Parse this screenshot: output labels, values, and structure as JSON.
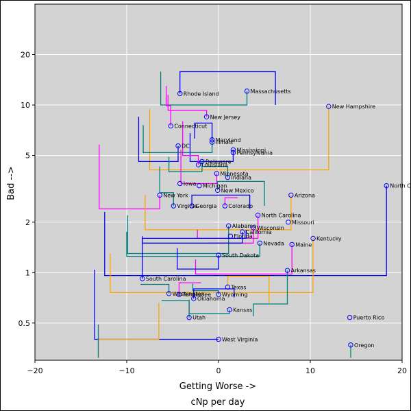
{
  "chart_data": {
    "type": "scatter",
    "title": "",
    "xlabel": "Getting Worse ->",
    "xlabel2": "cNp per day",
    "ylabel": "Bad -->",
    "xscale": "linear",
    "yscale": "log",
    "xlim": [
      -20,
      20
    ],
    "ylim": [
      0.3,
      40
    ],
    "xticks": [
      "−20",
      "−10",
      "0",
      "10",
      "20"
    ],
    "xtick_values": [
      -20,
      -10,
      0,
      10,
      20
    ],
    "yticks": [
      "0.5",
      "1",
      "2",
      "5",
      "10",
      "20"
    ],
    "ytick_values": [
      0.5,
      1,
      2,
      5,
      10,
      20
    ],
    "grid": true,
    "background": "#d3d3d3",
    "marker_color": "#0000ff",
    "points": [
      {
        "name": "Rhode Island",
        "x": -4.2,
        "y": 11.7
      },
      {
        "name": "Massachusetts",
        "x": 3.1,
        "y": 12.1
      },
      {
        "name": "New Hampshire",
        "x": 12.0,
        "y": 9.8
      },
      {
        "name": "New Jersey",
        "x": -1.3,
        "y": 8.5
      },
      {
        "name": "Connecticut",
        "x": -5.2,
        "y": 7.5
      },
      {
        "name": "Maryland",
        "x": -0.7,
        "y": 6.2
      },
      {
        "name": "Illinois",
        "x": -0.7,
        "y": 6.0
      },
      {
        "name": "DC",
        "x": -4.4,
        "y": 5.7
      },
      {
        "name": "Mississippi",
        "x": 1.6,
        "y": 5.4
      },
      {
        "name": "Pennsylvania",
        "x": 1.6,
        "y": 5.2
      },
      {
        "name": "Delaware",
        "x": -1.8,
        "y": 4.6
      },
      {
        "name": "Louisiana",
        "x": -2.2,
        "y": 4.4
      },
      {
        "name": "Minnesota",
        "x": -0.2,
        "y": 3.9
      },
      {
        "name": "Indiana",
        "x": 1.0,
        "y": 3.7
      },
      {
        "name": "Iowa",
        "x": -4.2,
        "y": 3.4
      },
      {
        "name": "Michigan",
        "x": -2.1,
        "y": 3.3
      },
      {
        "name": "New Mexico",
        "x": -0.1,
        "y": 3.1
      },
      {
        "name": "North Carolina",
        "x": 18.3,
        "y": 3.3
      },
      {
        "name": "New York",
        "x": -6.4,
        "y": 2.9
      },
      {
        "name": "Arizona",
        "x": 7.9,
        "y": 2.9
      },
      {
        "name": "Virginia",
        "x": -4.9,
        "y": 2.5
      },
      {
        "name": "Georgia",
        "x": -2.9,
        "y": 2.5
      },
      {
        "name": "Colorado",
        "x": 0.7,
        "y": 2.5
      },
      {
        "name": "North Carolina",
        "x": 4.3,
        "y": 2.2
      },
      {
        "name": "Missouri",
        "x": 7.6,
        "y": 2.0
      },
      {
        "name": "Alabama",
        "x": 1.1,
        "y": 1.9
      },
      {
        "name": "Wisconsin",
        "x": 3.8,
        "y": 1.85
      },
      {
        "name": "California",
        "x": 2.6,
        "y": 1.75
      },
      {
        "name": "Florida",
        "x": 1.3,
        "y": 1.65
      },
      {
        "name": "Kentucky",
        "x": 10.3,
        "y": 1.6
      },
      {
        "name": "Nevada",
        "x": 4.5,
        "y": 1.5
      },
      {
        "name": "Maine",
        "x": 8.0,
        "y": 1.47
      },
      {
        "name": "South Dakota",
        "x": 0.0,
        "y": 1.27
      },
      {
        "name": "Arkansas",
        "x": 7.5,
        "y": 1.03
      },
      {
        "name": "South Carolina",
        "x": -8.3,
        "y": 0.92
      },
      {
        "name": "Texas",
        "x": 1.0,
        "y": 0.82
      },
      {
        "name": "Washington",
        "x": -5.4,
        "y": 0.75
      },
      {
        "name": "Tennessee",
        "x": -4.3,
        "y": 0.74
      },
      {
        "name": "Wyoming",
        "x": 0.0,
        "y": 0.74
      },
      {
        "name": "Oklahoma",
        "x": -2.7,
        "y": 0.7
      },
      {
        "name": "Kansas",
        "x": 1.2,
        "y": 0.6
      },
      {
        "name": "Utah",
        "x": -3.2,
        "y": 0.54
      },
      {
        "name": "Puerto Rico",
        "x": 14.3,
        "y": 0.54
      },
      {
        "name": "West Virginia",
        "x": 0.0,
        "y": 0.4
      },
      {
        "name": "Oregon",
        "x": 14.4,
        "y": 0.37
      }
    ],
    "tracks": [
      {
        "color": "#0000ff",
        "path": [
          [
            -4.2,
            11.7
          ],
          [
            -4.2,
            15.8
          ],
          [
            6.2,
            15.8
          ],
          [
            6.2,
            10.0
          ]
        ]
      },
      {
        "color": "#008080",
        "path": [
          [
            3.1,
            12.1
          ],
          [
            3.1,
            10.0
          ],
          [
            -6.3,
            10.0
          ],
          [
            -6.3,
            15.8
          ]
        ]
      },
      {
        "color": "#ffa500",
        "path": [
          [
            12.0,
            9.8
          ],
          [
            12.0,
            4.1
          ],
          [
            -7.5,
            4.1
          ],
          [
            -7.5,
            9.5
          ]
        ]
      },
      {
        "color": "#ff00ff",
        "path": [
          [
            -1.3,
            8.5
          ],
          [
            -1.3,
            9.3
          ],
          [
            -5.5,
            9.3
          ],
          [
            -5.5,
            11.5
          ]
        ]
      },
      {
        "color": "#ff00ff",
        "path": [
          [
            -5.2,
            7.5
          ],
          [
            -5.2,
            9.9
          ],
          [
            -5.7,
            9.9
          ],
          [
            -5.7,
            13.0
          ]
        ]
      },
      {
        "color": "#0000ff",
        "path": [
          [
            -4.4,
            5.7
          ],
          [
            -4.4,
            4.6
          ],
          [
            -8.7,
            4.6
          ],
          [
            -8.7,
            8.5
          ]
        ]
      },
      {
        "color": "#008080",
        "path": [
          [
            -0.7,
            6.0
          ],
          [
            -0.7,
            5.2
          ],
          [
            -8.2,
            5.2
          ],
          [
            -8.2,
            7.6
          ]
        ]
      },
      {
        "color": "#0000ff",
        "path": [
          [
            -0.7,
            6.2
          ],
          [
            -0.7,
            7.8
          ],
          [
            -2.6,
            7.8
          ],
          [
            -2.6,
            6.3
          ]
        ]
      },
      {
        "color": "#0000ff",
        "path": [
          [
            1.6,
            5.4
          ],
          [
            1.6,
            4.6
          ],
          [
            -3.1,
            4.6
          ],
          [
            -3.1,
            6.8
          ]
        ]
      },
      {
        "color": "#ff00ff",
        "path": [
          [
            -2.2,
            4.4
          ],
          [
            -2.2,
            5.0
          ],
          [
            -3.9,
            5.0
          ],
          [
            -3.9,
            8.0
          ]
        ]
      },
      {
        "color": "#008080",
        "path": [
          [
            -1.8,
            4.6
          ],
          [
            -1.8,
            4.0
          ],
          [
            -5.4,
            4.0
          ],
          [
            -5.4,
            4.9
          ]
        ]
      },
      {
        "color": "#008080",
        "path": [
          [
            1.0,
            3.7
          ],
          [
            1.0,
            4.3
          ],
          [
            -1.6,
            4.3
          ]
        ]
      },
      {
        "color": "#ff00ff",
        "path": [
          [
            -0.2,
            3.9
          ],
          [
            -0.2,
            3.4
          ],
          [
            -4.1,
            3.4
          ],
          [
            -4.1,
            5.4
          ]
        ]
      },
      {
        "color": "#008080",
        "path": [
          [
            -0.1,
            3.1
          ],
          [
            -0.1,
            3.5
          ],
          [
            5.0,
            3.5
          ],
          [
            5.0,
            2.5
          ]
        ]
      },
      {
        "color": "#0000ff",
        "path": [
          [
            18.3,
            3.3
          ],
          [
            18.3,
            0.96
          ],
          [
            -12.4,
            0.96
          ],
          [
            -12.4,
            2.3
          ]
        ]
      },
      {
        "color": "#ff00ff",
        "path": [
          [
            -6.4,
            2.9
          ],
          [
            -6.4,
            2.4
          ],
          [
            -13.0,
            2.4
          ],
          [
            -13.0,
            5.8
          ]
        ]
      },
      {
        "color": "#ffa500",
        "path": [
          [
            7.9,
            2.9
          ],
          [
            7.9,
            1.8
          ],
          [
            -8.0,
            1.8
          ],
          [
            -8.0,
            2.9
          ]
        ]
      },
      {
        "color": "#0000ff",
        "path": [
          [
            -2.9,
            2.5
          ],
          [
            -2.9,
            2.9
          ],
          [
            3.4,
            2.9
          ],
          [
            3.4,
            2.4
          ]
        ]
      },
      {
        "color": "#ff00ff",
        "path": [
          [
            0.7,
            2.5
          ],
          [
            0.7,
            2.8
          ],
          [
            2.1,
            2.8
          ]
        ]
      },
      {
        "color": "#008080",
        "path": [
          [
            -4.9,
            2.5
          ],
          [
            -4.9,
            3.0
          ],
          [
            -6.4,
            3.0
          ],
          [
            -6.4,
            4.3
          ]
        ]
      },
      {
        "color": "#ff00ff",
        "path": [
          [
            4.3,
            2.2
          ],
          [
            4.3,
            1.6
          ],
          [
            -2.3,
            1.6
          ],
          [
            -2.3,
            1.8
          ]
        ]
      },
      {
        "color": "#008080",
        "path": [
          [
            1.1,
            1.9
          ],
          [
            1.1,
            1.3
          ],
          [
            -9.9,
            1.3
          ],
          [
            -9.9,
            2.2
          ]
        ]
      },
      {
        "color": "#ff00ff",
        "path": [
          [
            3.8,
            1.85
          ],
          [
            3.8,
            1.5
          ],
          [
            -1.1,
            1.5
          ]
        ]
      },
      {
        "color": "#0000ff",
        "path": [
          [
            2.6,
            1.75
          ],
          [
            2.6,
            1.5
          ],
          [
            -8.3,
            1.5
          ],
          [
            -8.3,
            1.65
          ]
        ]
      },
      {
        "color": "#008080",
        "path": [
          [
            4.5,
            1.5
          ],
          [
            4.5,
            1.25
          ],
          [
            -10.0,
            1.25
          ],
          [
            -10.0,
            1.75
          ]
        ]
      },
      {
        "color": "#ffa500",
        "path": [
          [
            10.3,
            1.6
          ],
          [
            10.3,
            0.76
          ],
          [
            -11.8,
            0.76
          ],
          [
            -11.8,
            1.3
          ]
        ]
      },
      {
        "color": "#ff00ff",
        "path": [
          [
            8.0,
            1.47
          ],
          [
            8.0,
            0.98
          ],
          [
            -2.5,
            0.98
          ],
          [
            -2.5,
            1.2
          ]
        ]
      },
      {
        "color": "#0000ff",
        "path": [
          [
            0.0,
            1.27
          ],
          [
            0.0,
            1.05
          ],
          [
            -4.5,
            1.05
          ],
          [
            -4.5,
            1.4
          ]
        ]
      },
      {
        "color": "#008080",
        "path": [
          [
            7.5,
            1.03
          ],
          [
            7.5,
            0.65
          ],
          [
            3.8,
            0.65
          ],
          [
            3.8,
            0.55
          ]
        ]
      },
      {
        "color": "#0000ff",
        "path": [
          [
            -8.3,
            0.92
          ],
          [
            -8.3,
            1.6
          ],
          [
            3.0,
            1.6
          ],
          [
            3.0,
            1.8
          ]
        ]
      },
      {
        "color": "#ffa500",
        "path": [
          [
            1.0,
            0.82
          ],
          [
            1.0,
            0.95
          ],
          [
            5.5,
            0.95
          ],
          [
            5.5,
            0.66
          ]
        ]
      },
      {
        "color": "#008080",
        "path": [
          [
            -5.4,
            0.75
          ],
          [
            -5.4,
            0.85
          ],
          [
            -8.5,
            0.85
          ]
        ]
      },
      {
        "color": "#ff00ff",
        "path": [
          [
            -4.3,
            0.74
          ],
          [
            -4.3,
            0.87
          ],
          [
            -1.9,
            0.87
          ]
        ]
      },
      {
        "color": "#008080",
        "path": [
          [
            0.0,
            0.74
          ],
          [
            0.0,
            0.78
          ],
          [
            -2.8,
            0.78
          ],
          [
            -2.8,
            0.86
          ]
        ]
      },
      {
        "color": "#0000ff",
        "path": [
          [
            -2.7,
            0.7
          ],
          [
            -2.7,
            0.8
          ],
          [
            1.7,
            0.8
          ],
          [
            1.7,
            0.71
          ]
        ]
      },
      {
        "color": "#008080",
        "path": [
          [
            1.2,
            0.6
          ],
          [
            1.2,
            0.57
          ],
          [
            -3.2,
            0.57
          ],
          [
            -3.2,
            0.69
          ]
        ]
      },
      {
        "color": "#008080",
        "path": [
          [
            -3.2,
            0.54
          ],
          [
            -3.2,
            0.68
          ],
          [
            -6.2,
            0.68
          ]
        ]
      },
      {
        "color": "#008080",
        "path": [
          [
            14.4,
            0.37
          ],
          [
            14.4,
            0.31
          ]
        ]
      },
      {
        "color": "#0000ff",
        "path": [
          [
            0.0,
            0.4
          ],
          [
            -13.5,
            0.4
          ],
          [
            -13.5,
            1.04
          ]
        ]
      },
      {
        "color": "#ffa500",
        "path": [
          [
            -13.1,
            0.31
          ],
          [
            -13.1,
            0.4
          ],
          [
            -6.5,
            0.4
          ],
          [
            -6.5,
            0.66
          ]
        ]
      },
      {
        "color": "#008080",
        "path": [
          [
            -13.1,
            0.31
          ],
          [
            -13.1,
            0.49
          ]
        ]
      }
    ]
  }
}
